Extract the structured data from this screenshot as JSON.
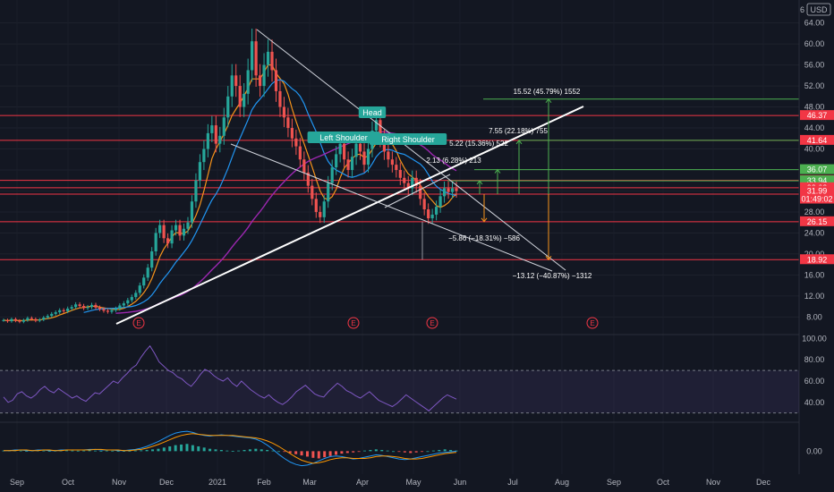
{
  "currency": "USD",
  "price_axis_top_label": "6",
  "colors": {
    "background": "#131722",
    "level_line": "#f23645",
    "trendline": "#ffffff",
    "channel_line": "#d1d4dc",
    "ma_fast": "#f7931a",
    "ma_mid": "#2196f3",
    "ma_slow": "#9c27b0",
    "candle_up": "#26a69a",
    "candle_down": "#ef5350",
    "target_line": "#4caf50",
    "rsi": "#7e57c2",
    "macd": "#2196f3",
    "macd_signal": "#ff9800",
    "label_bg": "#26a69a"
  },
  "chart_data": [
    {
      "type": "candlestick",
      "title": "",
      "x_tick_labels": [
        "Sep",
        "Oct",
        "Nov",
        "Dec",
        "2021",
        "Feb",
        "Mar",
        "Apr",
        "May",
        "Jun",
        "Jul",
        "Aug",
        "Sep",
        "Oct",
        "Nov",
        "Dec"
      ],
      "y_tick_labels": [
        "64.00",
        "60.00",
        "56.00",
        "52.00",
        "48.00",
        "44.00",
        "40.00",
        "36.00",
        "32.00",
        "28.00",
        "24.00",
        "20.00",
        "16.00",
        "12.00",
        "8.00"
      ],
      "ylim": [
        5,
        67
      ],
      "price_tags": [
        {
          "value": 46.37,
          "label": "46.37",
          "kind": "level"
        },
        {
          "value": 41.64,
          "label": "41.64",
          "kind": "level"
        },
        {
          "value": 36.07,
          "label": "36.07",
          "kind": "target"
        },
        {
          "value": 34.01,
          "label": "34.01",
          "kind": "level"
        },
        {
          "value": 33.94,
          "label": "33.94",
          "kind": "target"
        },
        {
          "value": 32.62,
          "label": "32.62",
          "kind": "level"
        },
        {
          "value": 31.99,
          "label": "31.99",
          "sub": "01:49:02",
          "kind": "current"
        },
        {
          "value": 26.15,
          "label": "26.15",
          "kind": "level"
        },
        {
          "value": 18.92,
          "label": "18.92",
          "kind": "level"
        }
      ],
      "horizontal_levels": [
        46.37,
        41.64,
        34.01,
        32.62,
        31.4,
        26.15,
        18.92
      ],
      "target_levels": [
        49.5,
        41.64,
        36.07,
        33.94
      ],
      "close_series": [
        7.4,
        7.2,
        7.6,
        7.3,
        7.1,
        7.4,
        7.8,
        7.6,
        7.3,
        7.5,
        7.9,
        8.2,
        8.6,
        8.9,
        9.3,
        9.1,
        9.6,
        9.9,
        10.4,
        10.1,
        9.7,
        9.9,
        10.3,
        9.8,
        9.5,
        9.2,
        9.0,
        9.3,
        9.6,
        10.2,
        10.6,
        11.2,
        11.8,
        12.6,
        14.0,
        15.5,
        17.4,
        20.5,
        24.0,
        25.5,
        23.0,
        22.0,
        24.5,
        25.5,
        23.5,
        24.8,
        26.0,
        30.0,
        34.0,
        37.5,
        40.0,
        43.0,
        44.5,
        41.0,
        42.5,
        46.0,
        50.0,
        54.0,
        52.0,
        48.0,
        50.5,
        55.0,
        60.5,
        54.0,
        52.0,
        56.0,
        58.5,
        55.0,
        51.0,
        48.0,
        46.0,
        44.0,
        42.0,
        40.5,
        38.0,
        35.5,
        33.0,
        30.5,
        28.0,
        27.0,
        30.0,
        33.5,
        36.5,
        39.0,
        41.0,
        38.0,
        36.0,
        38.5,
        41.0,
        39.5,
        37.0,
        40.0,
        43.5,
        45.5,
        42.0,
        39.5,
        38.0,
        37.0,
        36.0,
        34.5,
        33.5,
        32.5,
        34.5,
        33.0,
        30.5,
        28.5,
        26.8,
        27.5,
        29.0,
        31.0,
        32.5,
        31.8,
        32.5,
        31.99
      ],
      "events_label": "E",
      "annotations": {
        "pattern_labels": [
          "Head",
          "Left Shoulder",
          "Right Shoulder"
        ],
        "measures": [
          "15.52 (45.79%) 1552",
          "7.55 (22.18%) 755",
          "5.22 (15.36%) 522",
          "2.13 (6.28%) 213",
          "−5.86 (−18.31%) −586",
          "−13.12 (−40.87%) −1312"
        ]
      }
    },
    {
      "type": "line",
      "title": "",
      "name_hint": "rsi",
      "y_tick_labels": [
        "100.00",
        "80.00",
        "60.00",
        "40.00"
      ],
      "ylim": [
        23,
        102
      ],
      "bands": [
        70,
        30
      ],
      "values": [
        45,
        40,
        42,
        48,
        50,
        46,
        44,
        47,
        52,
        55,
        51,
        49,
        53,
        50,
        47,
        44,
        46,
        43,
        41,
        45,
        49,
        48,
        52,
        56,
        60,
        58,
        63,
        67,
        72,
        75,
        82,
        88,
        93,
        86,
        78,
        74,
        70,
        68,
        64,
        62,
        58,
        55,
        60,
        66,
        71,
        69,
        65,
        62,
        60,
        63,
        58,
        55,
        60,
        56,
        52,
        49,
        46,
        44,
        47,
        43,
        40,
        38,
        41,
        45,
        50,
        53,
        56,
        52,
        48,
        46,
        45,
        50,
        54,
        58,
        55,
        51,
        49,
        46,
        44,
        47,
        50,
        46,
        42,
        40,
        38,
        36,
        39,
        43,
        47,
        44,
        41,
        38,
        35,
        32,
        36,
        40,
        44,
        47,
        45,
        43
      ]
    },
    {
      "type": "bar",
      "title": "",
      "name_hint": "macd",
      "y_tick_labels": [
        "0.00"
      ],
      "ylim": [
        -3.5,
        4.5
      ],
      "histogram": [
        0.1,
        0.1,
        0.15,
        0.1,
        0.05,
        0.1,
        0.15,
        0.1,
        0.05,
        0.08,
        0.1,
        0.12,
        0.1,
        0.08,
        0.1,
        0.15,
        0.1,
        0.05,
        0.1,
        0.08,
        0.05,
        0.04,
        0.06,
        0.1,
        0.15,
        0.2,
        0.3,
        0.4,
        0.6,
        0.8,
        1.0,
        1.1,
        1.2,
        1.0,
        0.8,
        0.6,
        0.4,
        0.3,
        0.2,
        0.1,
        0.05,
        0.1,
        0.2,
        0.3,
        0.4,
        0.3,
        0.2,
        0.1,
        0.0,
        -0.1,
        -0.3,
        -0.5,
        -0.7,
        -0.9,
        -1.1,
        -1.2,
        -1.0,
        -0.8,
        -0.6,
        -0.4,
        -0.3,
        -0.2,
        -0.1,
        0.1,
        0.2,
        0.3,
        0.2,
        0.1,
        0.0,
        -0.1,
        -0.2,
        -0.3,
        -0.2,
        -0.1,
        0.0,
        0.1,
        0.2,
        0.3,
        0.2,
        0.1
      ],
      "macd_line": [
        0.1,
        0.1,
        0.2,
        0.2,
        0.1,
        0.1,
        0.2,
        0.2,
        0.1,
        0.1,
        0.2,
        0.2,
        0.2,
        0.2,
        0.2,
        0.3,
        0.3,
        0.2,
        0.2,
        0.2,
        0.1,
        0.1,
        0.2,
        0.3,
        0.5,
        0.8,
        1.2,
        1.6,
        2.1,
        2.6,
        3.0,
        3.2,
        3.3,
        3.1,
        2.8,
        2.6,
        2.5,
        2.6,
        2.7,
        2.6,
        2.5,
        2.4,
        2.3,
        2.2,
        2.0,
        1.6,
        1.0,
        0.3,
        -0.5,
        -1.2,
        -1.8,
        -2.2,
        -2.4,
        -2.3,
        -2.0,
        -1.6,
        -1.2,
        -0.9,
        -0.8,
        -0.9,
        -1.1,
        -1.3,
        -1.2,
        -1.0,
        -0.8,
        -0.6,
        -0.7,
        -0.9,
        -1.1,
        -1.3,
        -1.4,
        -1.3,
        -1.1,
        -0.9,
        -0.7,
        -0.5,
        -0.3,
        -0.2,
        -0.1,
        0.0
      ],
      "signal_line": [
        0.1,
        0.1,
        0.1,
        0.2,
        0.2,
        0.1,
        0.1,
        0.2,
        0.2,
        0.1,
        0.1,
        0.2,
        0.2,
        0.2,
        0.2,
        0.2,
        0.3,
        0.3,
        0.2,
        0.2,
        0.2,
        0.1,
        0.1,
        0.2,
        0.3,
        0.5,
        0.8,
        1.1,
        1.5,
        1.9,
        2.3,
        2.6,
        2.8,
        2.9,
        2.8,
        2.7,
        2.6,
        2.6,
        2.6,
        2.6,
        2.6,
        2.5,
        2.4,
        2.3,
        2.2,
        2.0,
        1.7,
        1.3,
        0.8,
        0.2,
        -0.4,
        -1.0,
        -1.5,
        -1.8,
        -2.0,
        -1.9,
        -1.7,
        -1.4,
        -1.2,
        -1.1,
        -1.1,
        -1.2,
        -1.2,
        -1.2,
        -1.1,
        -0.9,
        -0.8,
        -0.8,
        -0.9,
        -1.0,
        -1.2,
        -1.3,
        -1.3,
        -1.2,
        -1.0,
        -0.8,
        -0.6,
        -0.4,
        -0.3,
        -0.2
      ]
    }
  ]
}
